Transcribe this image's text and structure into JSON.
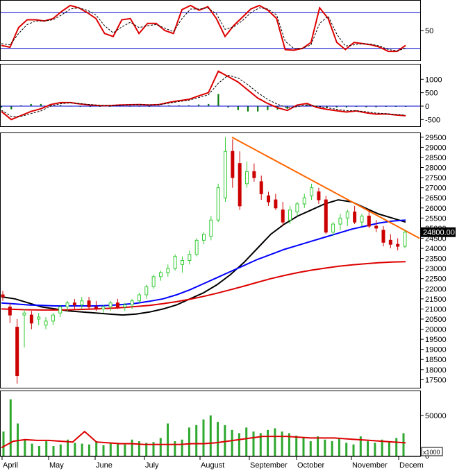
{
  "chart_data": [
    {
      "type": "line",
      "panel": "oscillator",
      "ylim": [
        0,
        100
      ],
      "yticks": [
        50
      ],
      "reference_lines": [
        {
          "y": 80,
          "color": "#0000cc"
        },
        {
          "y": 20,
          "color": "#0000cc"
        }
      ],
      "series": [
        {
          "color": "#dd0000",
          "kind": "main",
          "values": [
            25,
            22,
            55,
            68,
            68,
            66,
            70,
            82,
            92,
            88,
            80,
            70,
            45,
            40,
            68,
            70,
            45,
            62,
            62,
            50,
            45,
            85,
            92,
            84,
            90,
            70,
            40,
            58,
            72,
            86,
            92,
            84,
            70,
            18,
            17,
            20,
            30,
            88,
            70,
            30,
            18,
            30,
            28,
            26,
            22,
            15,
            15,
            25
          ]
        },
        {
          "color": "#000000",
          "kind": "signal",
          "values": [
            28,
            26,
            45,
            60,
            66,
            66,
            68,
            76,
            86,
            88,
            84,
            76,
            58,
            46,
            56,
            64,
            55,
            58,
            60,
            54,
            48,
            70,
            86,
            86,
            88,
            78,
            52,
            56,
            66,
            80,
            88,
            86,
            76,
            32,
            20,
            20,
            26,
            62,
            74,
            44,
            24,
            26,
            28,
            27,
            24,
            18,
            16,
            20
          ]
        }
      ]
    },
    {
      "type": "line",
      "panel": "macd",
      "ylim": [
        -750,
        1550
      ],
      "yticks": [
        1000,
        500,
        0,
        -500
      ],
      "reference_lines": [
        {
          "y": 0,
          "color": "#0000cc"
        }
      ],
      "series": [
        {
          "color": "#dd0000",
          "kind": "main",
          "values": [
            -200,
            -500,
            -350,
            -200,
            -100,
            60,
            130,
            130,
            80,
            40,
            20,
            20,
            40,
            50,
            60,
            40,
            60,
            140,
            200,
            250,
            380,
            500,
            1300,
            1100,
            900,
            600,
            300,
            100,
            -60,
            -160,
            40,
            100,
            -50,
            -120,
            -170,
            -220,
            -180,
            -250,
            -300,
            -290,
            -330,
            -360
          ]
        },
        {
          "color": "#000000",
          "kind": "signal",
          "values": [
            -150,
            -380,
            -380,
            -280,
            -180,
            0,
            90,
            120,
            90,
            60,
            30,
            20,
            30,
            45,
            55,
            45,
            50,
            110,
            170,
            220,
            320,
            420,
            850,
            1150,
            1050,
            800,
            500,
            250,
            70,
            -60,
            -20,
            40,
            0,
            -60,
            -120,
            -170,
            -170,
            -210,
            -260,
            -280,
            -310,
            -340
          ]
        }
      ],
      "histogram": [
        -50,
        -120,
        30,
        80,
        80,
        60,
        40,
        10,
        -10,
        -20,
        -10,
        0,
        10,
        5,
        5,
        -5,
        10,
        30,
        30,
        30,
        60,
        80,
        450,
        -50,
        -150,
        -200,
        -200,
        -150,
        -130,
        -100,
        60,
        60,
        -50,
        -60,
        -50,
        -50,
        -10,
        -40,
        -40,
        -10,
        -20,
        -20
      ]
    },
    {
      "type": "candlestick",
      "panel": "price",
      "ylim": [
        17100,
        29700
      ],
      "yticks": [
        29500,
        29000,
        28500,
        28000,
        27500,
        27000,
        26500,
        26000,
        25500,
        25000,
        24500,
        24000,
        23500,
        23000,
        22500,
        22000,
        21500,
        21000,
        20500,
        20000,
        19500,
        19000,
        18500,
        18000,
        17500
      ],
      "last_price_label": "24800.00",
      "candles": [
        {
          "o": 21700,
          "h": 21900,
          "l": 21400,
          "c": 21600
        },
        {
          "o": 21100,
          "h": 21300,
          "l": 20300,
          "c": 20700
        },
        {
          "o": 20100,
          "h": 20500,
          "l": 17300,
          "c": 17700
        },
        {
          "o": 20700,
          "h": 21000,
          "l": 19100,
          "c": 20800
        },
        {
          "o": 20700,
          "h": 20900,
          "l": 20000,
          "c": 20300
        },
        {
          "o": 20500,
          "h": 20800,
          "l": 20200,
          "c": 20600
        },
        {
          "o": 20200,
          "h": 20600,
          "l": 20000,
          "c": 20400
        },
        {
          "o": 20400,
          "h": 20800,
          "l": 20200,
          "c": 20700
        },
        {
          "o": 20800,
          "h": 21200,
          "l": 20600,
          "c": 21100
        },
        {
          "o": 21100,
          "h": 21400,
          "l": 20900,
          "c": 21300
        },
        {
          "o": 21300,
          "h": 21500,
          "l": 21000,
          "c": 21200
        },
        {
          "o": 21200,
          "h": 21600,
          "l": 21000,
          "c": 21400
        },
        {
          "o": 21400,
          "h": 21600,
          "l": 21000,
          "c": 21100
        },
        {
          "o": 21100,
          "h": 21400,
          "l": 20900,
          "c": 21000
        },
        {
          "o": 21000,
          "h": 21200,
          "l": 20800,
          "c": 21100
        },
        {
          "o": 21100,
          "h": 21400,
          "l": 20900,
          "c": 21300
        },
        {
          "o": 21300,
          "h": 21500,
          "l": 21000,
          "c": 21100
        },
        {
          "o": 21100,
          "h": 21300,
          "l": 20900,
          "c": 21200
        },
        {
          "o": 21200,
          "h": 21500,
          "l": 21000,
          "c": 21400
        },
        {
          "o": 21400,
          "h": 21800,
          "l": 21300,
          "c": 21700
        },
        {
          "o": 21700,
          "h": 22200,
          "l": 21500,
          "c": 22100
        },
        {
          "o": 22100,
          "h": 22700,
          "l": 22000,
          "c": 22600
        },
        {
          "o": 22600,
          "h": 22900,
          "l": 22400,
          "c": 22800
        },
        {
          "o": 22800,
          "h": 23200,
          "l": 22600,
          "c": 23000
        },
        {
          "o": 23000,
          "h": 23700,
          "l": 22900,
          "c": 23600
        },
        {
          "o": 23200,
          "h": 23600,
          "l": 22800,
          "c": 23400
        },
        {
          "o": 23400,
          "h": 23900,
          "l": 23200,
          "c": 23700
        },
        {
          "o": 23700,
          "h": 24500,
          "l": 23600,
          "c": 24400
        },
        {
          "o": 24400,
          "h": 24800,
          "l": 24200,
          "c": 24700
        },
        {
          "o": 24600,
          "h": 25600,
          "l": 24400,
          "c": 25400
        },
        {
          "o": 25400,
          "h": 27200,
          "l": 25300,
          "c": 27000
        },
        {
          "o": 26500,
          "h": 29500,
          "l": 26300,
          "c": 28800
        },
        {
          "o": 28800,
          "h": 29400,
          "l": 27000,
          "c": 27500
        },
        {
          "o": 28200,
          "h": 28800,
          "l": 25900,
          "c": 26100
        },
        {
          "o": 27200,
          "h": 28300,
          "l": 27000,
          "c": 27800
        },
        {
          "o": 27800,
          "h": 28200,
          "l": 27300,
          "c": 27500
        },
        {
          "o": 27300,
          "h": 27600,
          "l": 26400,
          "c": 26700
        },
        {
          "o": 26600,
          "h": 26800,
          "l": 26100,
          "c": 26300
        },
        {
          "o": 26400,
          "h": 26700,
          "l": 25900,
          "c": 26000
        },
        {
          "o": 25900,
          "h": 26300,
          "l": 25100,
          "c": 25300
        },
        {
          "o": 25400,
          "h": 26100,
          "l": 25200,
          "c": 25900
        },
        {
          "o": 25800,
          "h": 26300,
          "l": 25600,
          "c": 26200
        },
        {
          "o": 26200,
          "h": 26700,
          "l": 26000,
          "c": 26500
        },
        {
          "o": 26600,
          "h": 27200,
          "l": 26400,
          "c": 27000
        },
        {
          "o": 26800,
          "h": 27000,
          "l": 26200,
          "c": 26400
        },
        {
          "o": 26400,
          "h": 26600,
          "l": 24700,
          "c": 24800
        },
        {
          "o": 24800,
          "h": 25300,
          "l": 24600,
          "c": 25200
        },
        {
          "o": 25200,
          "h": 25700,
          "l": 24900,
          "c": 25500
        },
        {
          "o": 25500,
          "h": 25900,
          "l": 25100,
          "c": 25800
        },
        {
          "o": 25800,
          "h": 26100,
          "l": 25200,
          "c": 25300
        },
        {
          "o": 25300,
          "h": 25700,
          "l": 25100,
          "c": 25600
        },
        {
          "o": 25600,
          "h": 25900,
          "l": 25000,
          "c": 25100
        },
        {
          "o": 25100,
          "h": 25400,
          "l": 24800,
          "c": 25000
        },
        {
          "o": 24900,
          "h": 25100,
          "l": 24100,
          "c": 24300
        },
        {
          "o": 24400,
          "h": 24700,
          "l": 24000,
          "c": 24200
        },
        {
          "o": 24200,
          "h": 24500,
          "l": 23900,
          "c": 24100
        },
        {
          "o": 24100,
          "h": 24900,
          "l": 24000,
          "c": 24800
        }
      ],
      "series": [
        {
          "color": "#000000",
          "values": [
            21600,
            21500,
            21300,
            21100,
            21000,
            20900,
            20850,
            20800,
            20750,
            20700,
            20750,
            20850,
            21000,
            21200,
            21500,
            21800,
            22200,
            22700,
            23300,
            24000,
            24700,
            25200,
            25600,
            25900,
            26200,
            26400,
            26300,
            26000,
            25700,
            25500,
            25300
          ]
        },
        {
          "color": "#0000ff",
          "values": [
            21300,
            21250,
            21200,
            21180,
            21150,
            21150,
            21150,
            21150,
            21180,
            21220,
            21280,
            21380,
            21500,
            21700,
            21950,
            22250,
            22550,
            22850,
            23150,
            23450,
            23700,
            23950,
            24150,
            24350,
            24550,
            24750,
            24950,
            25100,
            25250,
            25350,
            25400
          ]
        },
        {
          "color": "#dd0000",
          "values": [
            21000,
            20980,
            20960,
            20950,
            20950,
            20960,
            20980,
            21000,
            21030,
            21070,
            21120,
            21180,
            21260,
            21360,
            21480,
            21620,
            21780,
            21950,
            22130,
            22320,
            22500,
            22660,
            22800,
            22920,
            23020,
            23110,
            23180,
            23240,
            23290,
            23320,
            23340
          ]
        },
        {
          "color": "#ff6600",
          "kind": "trendline",
          "values": [
            29500,
            24500
          ]
        }
      ]
    },
    {
      "type": "bar",
      "panel": "volume",
      "ylim": [
        0,
        80000
      ],
      "yticks": [
        50000,
        0
      ],
      "unit_label": "x1000",
      "values": [
        30000,
        70000,
        40000,
        20000,
        15000,
        12000,
        18000,
        12000,
        14000,
        20000,
        16000,
        15000,
        14000,
        18000,
        13000,
        15000,
        16000,
        14000,
        20000,
        18000,
        16000,
        17000,
        22000,
        40000,
        18000,
        20000,
        35000,
        38000,
        45000,
        50000,
        42000,
        38000,
        32000,
        28000,
        35000,
        30000,
        28000,
        32000,
        34000,
        30000,
        28000,
        25000,
        22000,
        18000,
        24000,
        20000,
        18000,
        22000,
        16000,
        14000,
        24000,
        18000,
        16000,
        20000,
        18000,
        22000,
        28000
      ],
      "series": [
        {
          "color": "#dd0000",
          "values": [
            10000,
            18000,
            20000,
            19000,
            19000,
            18000,
            17000,
            30000,
            17000,
            16000,
            15000,
            15000,
            14000,
            14000,
            14000,
            14000,
            15000,
            15000,
            16000,
            18000,
            20000,
            22000,
            24000,
            24000,
            24000,
            23000,
            22000,
            22000,
            22000,
            21000,
            20000,
            19000,
            18000,
            17000,
            16000
          ]
        }
      ]
    },
    {
      "type": "axis",
      "panel": "months",
      "categories": [
        "April",
        "May",
        "June",
        "July",
        "August",
        "September",
        "October",
        "November",
        "Decem"
      ]
    }
  ]
}
